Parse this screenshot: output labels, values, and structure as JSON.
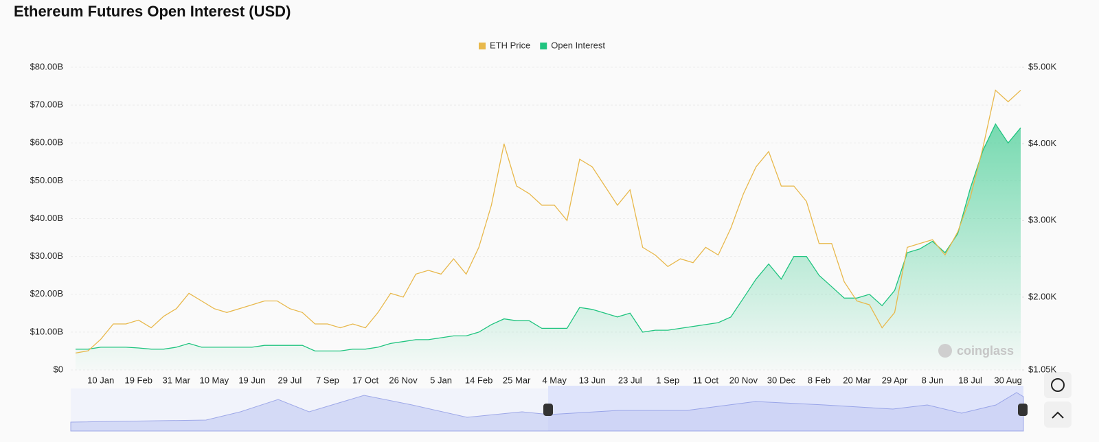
{
  "chart_data": {
    "type": "line",
    "title": "Ethereum Futures Open Interest (USD)",
    "watermark": "coinglass",
    "categories": [
      null,
      null,
      "10 Jan",
      null,
      null,
      "19 Feb",
      null,
      null,
      "31 Mar",
      null,
      null,
      "10 May",
      null,
      null,
      "19 Jun",
      null,
      null,
      "29 Jul",
      null,
      null,
      "7 Sep",
      null,
      null,
      "17 Oct",
      null,
      null,
      "26 Nov",
      null,
      null,
      "5 Jan",
      null,
      null,
      "14 Feb",
      null,
      null,
      "25 Mar",
      null,
      null,
      "4 May",
      null,
      null,
      "13 Jun",
      null,
      null,
      "23 Jul",
      null,
      null,
      "1 Sep",
      null,
      null,
      "11 Oct",
      null,
      null,
      "20 Nov",
      null,
      null,
      "30 Dec",
      null,
      null,
      "8 Feb",
      null,
      null,
      "20 Mar",
      null,
      null,
      "29 Apr",
      null,
      null,
      "8 Jun",
      null,
      null,
      "18 Jul",
      null,
      null,
      "30 Aug",
      null
    ],
    "series": [
      {
        "name": "Open Interest",
        "color": "#1fc47f",
        "axis": "y",
        "area": true,
        "values": [
          5.5,
          5.5,
          6,
          6,
          6,
          5.8,
          5.5,
          5.5,
          6,
          7,
          6,
          6,
          6,
          6,
          6,
          6.5,
          6.5,
          6.5,
          6.5,
          5,
          5,
          5,
          5.5,
          5.5,
          6,
          7,
          7.5,
          8,
          8,
          8.5,
          9,
          9,
          10,
          12,
          13.5,
          13,
          13,
          11,
          11,
          11,
          16.5,
          16,
          15,
          14,
          15,
          10,
          10.5,
          10.5,
          11,
          11.5,
          12,
          12.5,
          14,
          19,
          24,
          28,
          24,
          30,
          30,
          25,
          22,
          19,
          19,
          20,
          17,
          21,
          31,
          32,
          34,
          31,
          36,
          48,
          58,
          65,
          60,
          64
        ]
      },
      {
        "name": "ETH Price",
        "color": "#e8b84b",
        "axis": "y2",
        "area": false,
        "values": [
          1.27,
          1.3,
          1.45,
          1.65,
          1.65,
          1.7,
          1.6,
          1.75,
          1.85,
          2.05,
          1.95,
          1.85,
          1.8,
          1.85,
          1.9,
          1.95,
          1.95,
          1.85,
          1.8,
          1.65,
          1.65,
          1.6,
          1.65,
          1.6,
          1.8,
          2.05,
          2.0,
          2.3,
          2.35,
          2.3,
          2.5,
          2.3,
          2.65,
          3.2,
          4.0,
          3.45,
          3.35,
          3.2,
          3.2,
          3.0,
          3.8,
          3.7,
          3.45,
          3.2,
          3.4,
          2.65,
          2.55,
          2.4,
          2.5,
          2.45,
          2.65,
          2.55,
          2.9,
          3.35,
          3.7,
          3.9,
          3.45,
          3.45,
          3.25,
          2.7,
          2.7,
          2.2,
          1.95,
          1.9,
          1.6,
          1.8,
          2.65,
          2.7,
          2.75,
          2.55,
          2.85,
          3.3,
          3.95,
          4.7,
          4.55,
          4.7
        ]
      }
    ],
    "legend_order": [
      "ETH Price",
      "Open Interest"
    ],
    "ylim": [
      0,
      80
    ],
    "yticks": [
      {
        "value": 0,
        "label": "$0"
      },
      {
        "value": 10,
        "label": "$10.00B"
      },
      {
        "value": 20,
        "label": "$20.00B"
      },
      {
        "value": 30,
        "label": "$30.00B"
      },
      {
        "value": 40,
        "label": "$40.00B"
      },
      {
        "value": 50,
        "label": "$50.00B"
      },
      {
        "value": 60,
        "label": "$60.00B"
      },
      {
        "value": 70,
        "label": "$70.00B"
      },
      {
        "value": 80,
        "label": "$80.00B"
      }
    ],
    "y2lim": [
      1.05,
      5
    ],
    "y2ticks": [
      {
        "value": 1.05,
        "label": "$1.05K"
      },
      {
        "value": 2,
        "label": "$2.00K"
      },
      {
        "value": 3,
        "label": "$3.00K"
      },
      {
        "value": 4,
        "label": "$4.00K"
      },
      {
        "value": 5,
        "label": "$5.00K"
      }
    ],
    "grid": true
  }
}
